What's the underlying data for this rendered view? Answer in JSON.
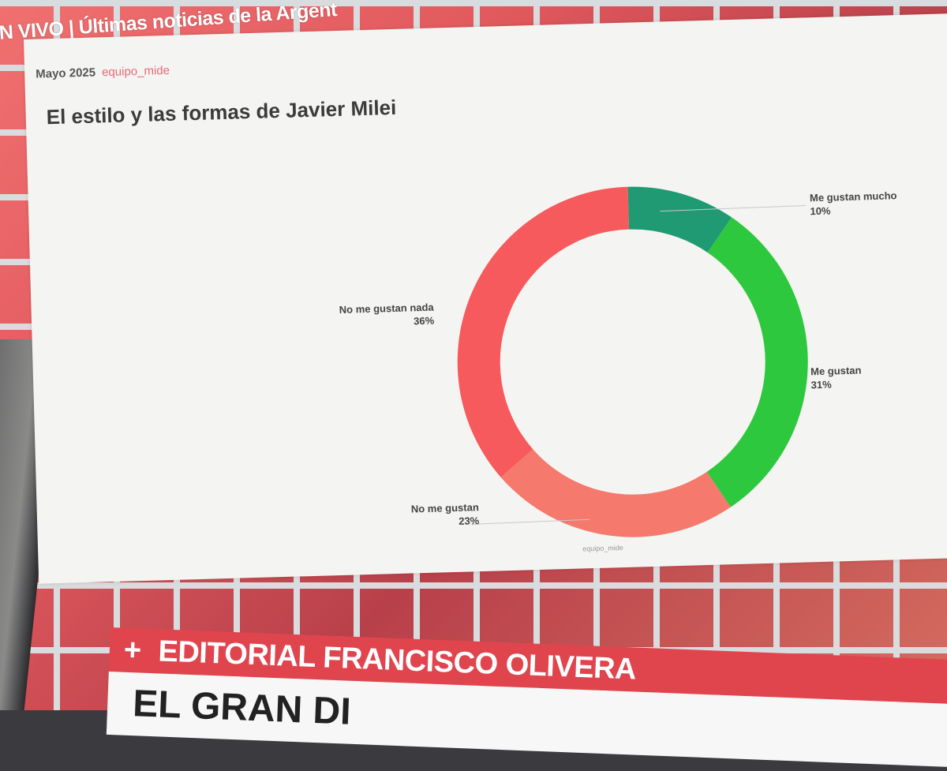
{
  "ticker": {
    "text": "N VIVO | Últimas noticias de la Argent"
  },
  "slide": {
    "date": "Mayo 2025",
    "brand": "equipo_mide",
    "title": "El estilo y las formas de Javier Milei",
    "footer": "equipo_mide"
  },
  "chart_data": {
    "type": "pie",
    "donut": true,
    "title": "El estilo y las formas de Javier Milei",
    "slices": [
      {
        "label": "Me gustan mucho",
        "value": 10,
        "display": "10%",
        "color": "#1f9a73"
      },
      {
        "label": "Me gustan",
        "value": 31,
        "display": "31%",
        "color": "#2ec83f"
      },
      {
        "label": "No me gustan",
        "value": 23,
        "display": "23%",
        "color": "#f5796c"
      },
      {
        "label": "No me gustan nada",
        "value": 36,
        "display": "36%",
        "color": "#f75a5c"
      }
    ]
  },
  "banner": {
    "plus": "+",
    "headline": "EDITORIAL FRANCISCO OLIVERA",
    "subheadline": "EL GRAN DI"
  }
}
